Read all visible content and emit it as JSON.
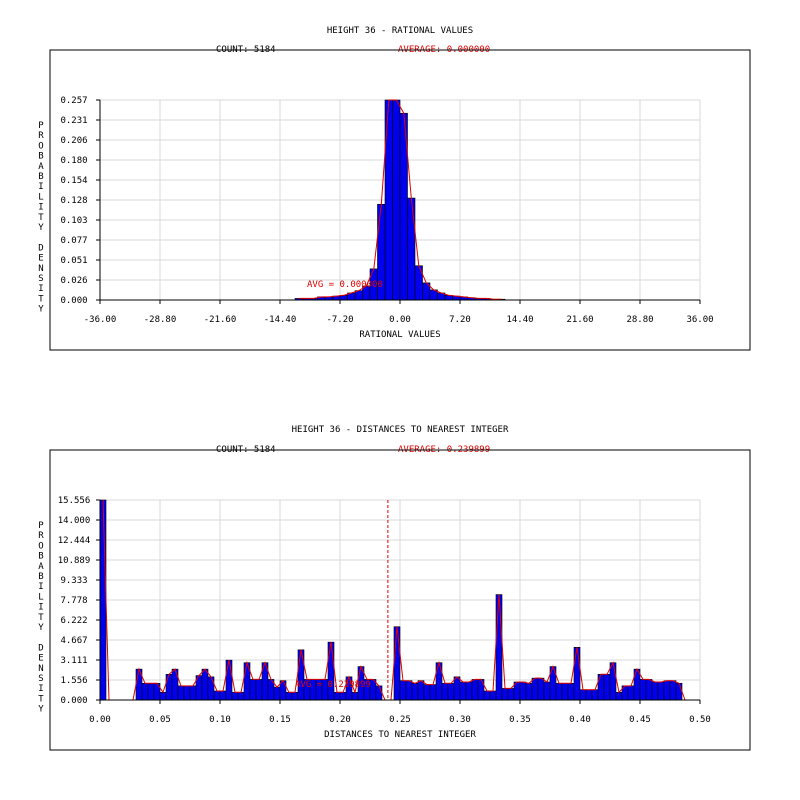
{
  "colors": {
    "bar_fill": "#0000ee",
    "bar_stroke": "#000000",
    "curve": "#e00000",
    "grid": "#d8d8d8",
    "frame": "#000000"
  },
  "chart_data": [
    {
      "type": "bar",
      "title": "HEIGHT 36 - RATIONAL VALUES",
      "count_label": "COUNT: 5184",
      "average_label": "AVERAGE: 0.000000",
      "avg_marker_label": "AVG = 0.000000",
      "xlabel": "RATIONAL VALUES",
      "ylabel": "PROBABILITY DENSITY",
      "xlim": [
        -36,
        36
      ],
      "ylim": [
        0,
        0.257
      ],
      "grid": true,
      "xticks": [
        "-36.00",
        "-28.80",
        "-21.60",
        "-14.40",
        "-7.20",
        "0.00",
        "7.20",
        "14.40",
        "21.60",
        "28.80",
        "36.00"
      ],
      "yticks": [
        "0.000",
        "0.026",
        "0.051",
        "0.077",
        "0.103",
        "0.128",
        "0.154",
        "0.180",
        "0.206",
        "0.231",
        "0.257"
      ],
      "bin_width": 0.9,
      "x": [
        -12.15,
        -11.25,
        -10.35,
        -9.45,
        -8.55,
        -7.65,
        -6.75,
        -5.85,
        -4.95,
        -4.05,
        -3.15,
        -2.25,
        -1.35,
        -0.45,
        0.45,
        1.35,
        2.25,
        3.15,
        4.05,
        4.95,
        5.85,
        6.75,
        7.65,
        8.55,
        9.45,
        10.35,
        11.25,
        12.15
      ],
      "values": [
        0.002,
        0.002,
        0.002,
        0.004,
        0.004,
        0.005,
        0.006,
        0.009,
        0.012,
        0.018,
        0.04,
        0.123,
        0.257,
        0.257,
        0.24,
        0.131,
        0.044,
        0.022,
        0.013,
        0.009,
        0.006,
        0.005,
        0.004,
        0.003,
        0.002,
        0.002,
        0.001,
        0.001
      ]
    },
    {
      "type": "bar",
      "title": "HEIGHT 36 - DISTANCES TO NEAREST INTEGER",
      "count_label": "COUNT: 5184",
      "average_label": "AVERAGE: 0.239899",
      "avg_marker_label": "AVG = 0.239899",
      "avg_value": 0.239899,
      "xlabel": "DISTANCES TO NEAREST INTEGER",
      "ylabel": "PROBABILITY DENSITY",
      "xlim": [
        0,
        0.5
      ],
      "ylim": [
        0,
        15.556
      ],
      "grid": true,
      "xticks": [
        "0.00",
        "0.05",
        "0.10",
        "0.15",
        "0.20",
        "0.25",
        "0.30",
        "0.35",
        "0.40",
        "0.45",
        "0.50"
      ],
      "yticks": [
        "0.000",
        "1.556",
        "3.111",
        "4.667",
        "6.222",
        "7.778",
        "9.333",
        "10.889",
        "12.444",
        "14.000",
        "15.556"
      ],
      "bin_width": 0.005,
      "x": [
        0.0025,
        0.0075,
        0.0125,
        0.0175,
        0.0225,
        0.0275,
        0.0325,
        0.0375,
        0.0425,
        0.0475,
        0.0525,
        0.0575,
        0.0625,
        0.0675,
        0.0725,
        0.0775,
        0.0825,
        0.0875,
        0.0925,
        0.0975,
        0.1025,
        0.1075,
        0.1125,
        0.1175,
        0.1225,
        0.1275,
        0.1325,
        0.1375,
        0.1425,
        0.1475,
        0.1525,
        0.1575,
        0.1625,
        0.1675,
        0.1725,
        0.1775,
        0.1825,
        0.1875,
        0.1925,
        0.1975,
        0.2025,
        0.2075,
        0.2125,
        0.2175,
        0.2225,
        0.2275,
        0.2325,
        0.2375,
        0.2425,
        0.2475,
        0.2525,
        0.2575,
        0.2625,
        0.2675,
        0.2725,
        0.2775,
        0.2825,
        0.2875,
        0.2925,
        0.2975,
        0.3025,
        0.3075,
        0.3125,
        0.3175,
        0.3225,
        0.3275,
        0.3325,
        0.3375,
        0.3425,
        0.3475,
        0.3525,
        0.3575,
        0.3625,
        0.3675,
        0.3725,
        0.3775,
        0.3825,
        0.3875,
        0.3925,
        0.3975,
        0.4025,
        0.4075,
        0.4125,
        0.4175,
        0.4225,
        0.4275,
        0.4325,
        0.4375,
        0.4425,
        0.4475,
        0.4525,
        0.4575,
        0.4625,
        0.4675,
        0.4725,
        0.4775,
        0.4825,
        0.4875
      ],
      "values": [
        15.556,
        0,
        0,
        0,
        0,
        0,
        2.4,
        1.3,
        1.3,
        1.3,
        0.6,
        2.0,
        2.4,
        1.1,
        1.1,
        1.1,
        1.9,
        2.4,
        1.8,
        0.7,
        0.7,
        3.1,
        0.6,
        0.6,
        2.9,
        1.6,
        1.6,
        2.9,
        1.6,
        1.0,
        1.5,
        0.6,
        0.6,
        3.9,
        1.6,
        1.6,
        1.6,
        1.6,
        4.5,
        0.6,
        0.6,
        1.8,
        0.6,
        2.6,
        1.6,
        1.6,
        1.1,
        0,
        0,
        5.7,
        1.5,
        1.5,
        1.3,
        1.5,
        1.2,
        1.2,
        2.9,
        1.3,
        1.3,
        1.8,
        1.4,
        1.4,
        1.6,
        1.6,
        0.7,
        0.7,
        8.2,
        0.9,
        0.9,
        1.4,
        1.4,
        1.3,
        1.7,
        1.7,
        1.4,
        2.6,
        1.3,
        1.3,
        1.3,
        4.1,
        0.8,
        0.8,
        0.8,
        2.0,
        2.0,
        2.9,
        0.6,
        1.1,
        1.1,
        2.4,
        1.6,
        1.6,
        1.4,
        1.4,
        1.5,
        1.5,
        1.3,
        0
      ]
    }
  ]
}
